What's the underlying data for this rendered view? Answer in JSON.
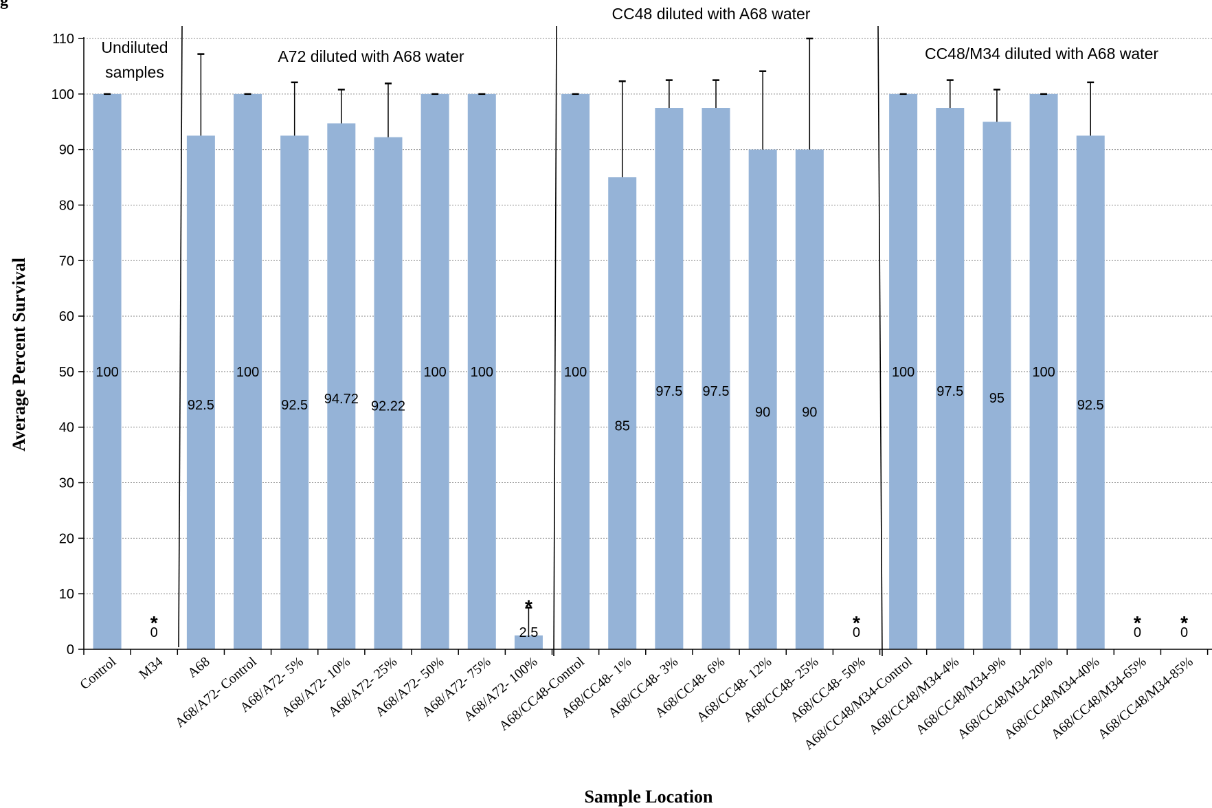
{
  "chart_data": {
    "type": "bar",
    "title_fragment": "g",
    "xlabel": "Sample Location",
    "ylabel": "Average Percent Survival",
    "ylim": [
      0,
      110
    ],
    "yticks": [
      0,
      10,
      20,
      30,
      40,
      50,
      60,
      70,
      80,
      90,
      100,
      110
    ],
    "grid": true,
    "bar_color": "#95B3D7",
    "categories": [
      "Control",
      "M34",
      "A68",
      "A68/A72- Control",
      "A68/A72- 5%",
      "A68/A72- 10%",
      "A68/A72- 25%",
      "A68/A72- 50%",
      "A68/A72- 75%",
      "A68/A72- 100%",
      "A68/CC48-Control",
      "A68/CC48- 1%",
      "A68/CC48- 3%",
      "A68/CC48- 6%",
      "A68/CC48- 12%",
      "A68/CC48- 25%",
      "A68/CC48- 50%",
      "A68/CC48/M34-Control",
      "A68/CC48/M34-4%",
      "A68/CC48/M34-9%",
      "A68/CC48/M34-20%",
      "A68/CC48/M34-40%",
      "A68/CC48/M34-65%",
      "A68/CC48/M34-85%"
    ],
    "values": [
      100,
      0,
      92.5,
      100,
      92.5,
      94.72,
      92.22,
      100,
      100,
      2.5,
      100,
      85,
      97.5,
      97.5,
      90,
      90,
      0,
      100,
      97.5,
      95,
      100,
      92.5,
      0,
      0
    ],
    "value_labels": [
      "100",
      "0",
      "92.5",
      "100",
      "92.5",
      "94.72",
      "92.22",
      "100",
      "100",
      "2.5",
      "100",
      "85",
      "97.5",
      "97.5",
      "90",
      "90",
      "0",
      "100",
      "97.5",
      "95",
      "100",
      "92.5",
      "0",
      "0"
    ],
    "error_upper": [
      null,
      null,
      107.2,
      null,
      102.1,
      100.8,
      101.9,
      null,
      null,
      7.5,
      null,
      102.3,
      102.5,
      102.5,
      104.1,
      110,
      null,
      null,
      102.5,
      100.8,
      null,
      102.1,
      null,
      null
    ],
    "significance_marks": [
      "",
      "*",
      "",
      "",
      "",
      "",
      "",
      "",
      "",
      "*",
      "",
      "",
      "",
      "",
      "",
      "",
      "*",
      "",
      "",
      "",
      "",
      "",
      "*",
      "*"
    ],
    "group_annotations": [
      "Undiluted",
      "samples",
      "A72 diluted with A68 water",
      "CC48 diluted with A68 water",
      "CC48/M34 diluted with A68 water"
    ]
  }
}
